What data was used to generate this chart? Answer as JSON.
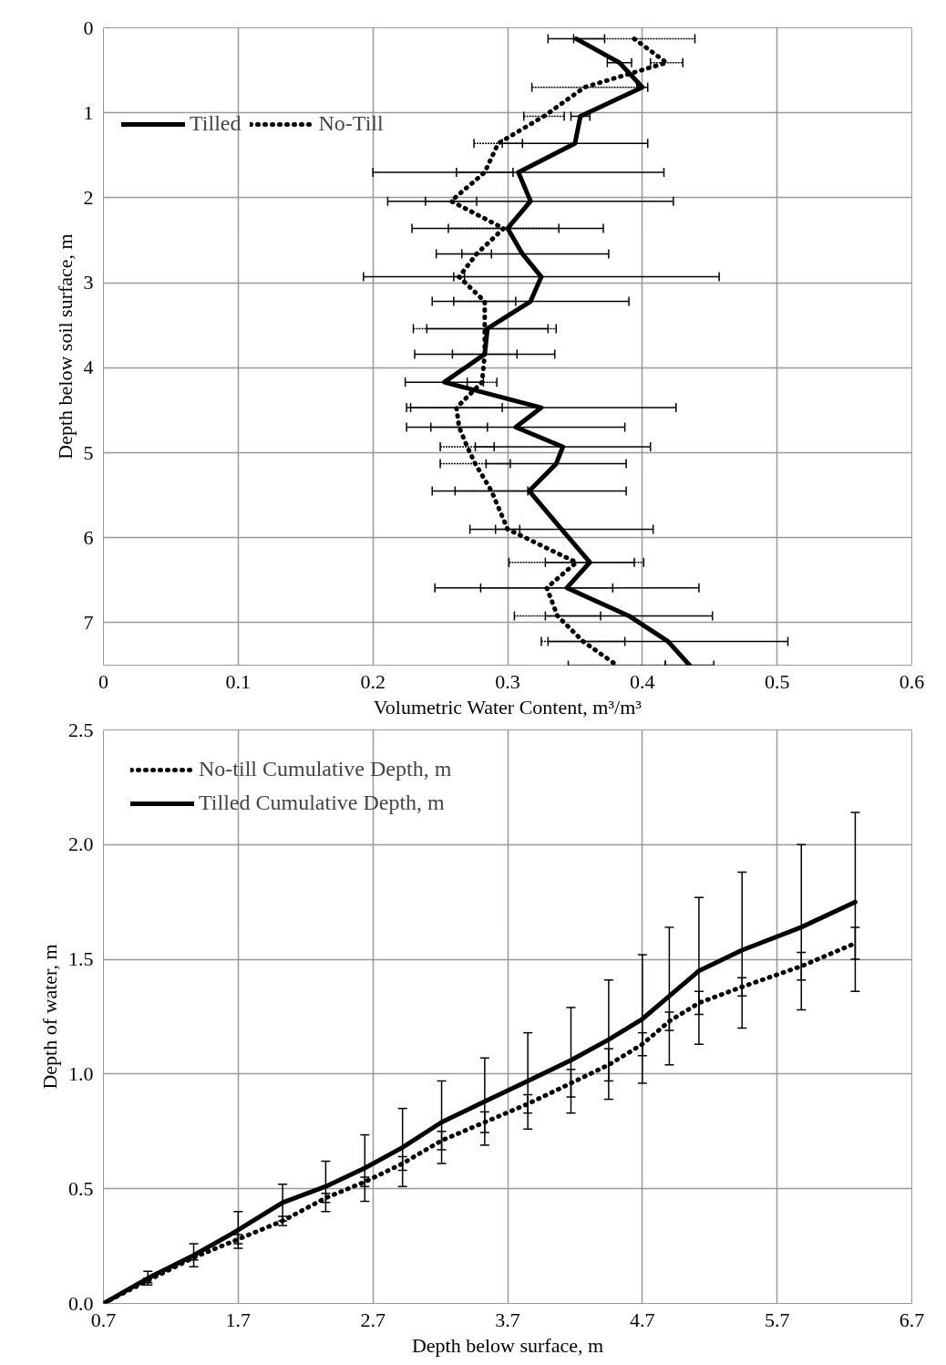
{
  "chart_data": [
    {
      "type": "line",
      "xlabel": "Volumetric Water Content, m³/m³",
      "ylabel": "Depth below soil surface, m",
      "xlim": [
        0,
        0.6
      ],
      "ylim": [
        7.5,
        0
      ],
      "xticks": [
        0,
        0.1,
        0.2,
        0.3,
        0.4,
        0.5,
        0.6
      ],
      "yticks": [
        0,
        1,
        2,
        3,
        4,
        5,
        6,
        7
      ],
      "grid": true,
      "legend": "top left",
      "series": [
        {
          "name": "Tilled",
          "color": "#000000",
          "line_style": "solid",
          "x": [
            0.351,
            0.383,
            0.4,
            0.354,
            0.35,
            0.308,
            0.317,
            0.3,
            0.311,
            0.325,
            0.317,
            0.285,
            0.283,
            0.253,
            0.325,
            0.306,
            0.341,
            0.336,
            0.316,
            0.34,
            0.361,
            0.344,
            0.39,
            0.419,
            0.435
          ],
          "values": [
            0.13,
            0.41,
            0.7,
            1.04,
            1.36,
            1.7,
            2.04,
            2.36,
            2.66,
            2.93,
            3.22,
            3.54,
            3.84,
            4.17,
            4.47,
            4.7,
            4.93,
            5.13,
            5.45,
            5.9,
            6.29,
            6.59,
            6.92,
            7.22,
            7.5
          ],
          "xerrors": [
            0.021,
            0.009,
            0.004,
            0.007,
            0.054,
            0.108,
            0.106,
            0.071,
            0.064,
            0.132,
            0.073,
            0.045,
            0.052,
            0.029,
            0.1,
            0.081,
            0.065,
            0.052,
            0.072,
            0.068,
            0.033,
            0.098,
            0.062,
            0.089,
            0.018
          ]
        },
        {
          "name": "No-Till",
          "color": "#000000",
          "line_style": "dotted",
          "x": [
            0.394,
            0.418,
            0.357,
            0.327,
            0.293,
            0.283,
            0.258,
            0.297,
            0.277,
            0.264,
            0.283,
            0.283,
            0.283,
            0.281,
            0.262,
            0.264,
            0.27,
            0.276,
            0.288,
            0.3,
            0.351,
            0.329,
            0.337,
            0.356,
            0.381
          ],
          "values": [
            0.13,
            0.41,
            0.7,
            1.04,
            1.36,
            1.7,
            2.04,
            2.36,
            2.66,
            2.93,
            3.22,
            3.54,
            3.84,
            4.17,
            4.47,
            4.7,
            4.93,
            5.13,
            5.45,
            5.9,
            6.29,
            6.59,
            6.92,
            7.22,
            7.5
          ],
          "xerrors": [
            0.045,
            0.012,
            0.039,
            0.015,
            0.018,
            0.021,
            0.019,
            0.041,
            0.011,
            0.004,
            0.023,
            0.053,
            0.024,
            0.011,
            0.034,
            0.021,
            0.02,
            0.026,
            0.027,
            0.009,
            0.05,
            0.049,
            0.032,
            0.031,
            0.036
          ]
        }
      ]
    },
    {
      "type": "line",
      "xlabel": "Depth below surface, m",
      "ylabel": "Depth of water, m",
      "xlim": [
        0.7,
        6.7
      ],
      "ylim": [
        0,
        2.5
      ],
      "xticks": [
        0.7,
        1.7,
        2.7,
        3.7,
        4.7,
        5.7,
        6.7
      ],
      "yticks": [
        {
          "value": 0,
          "label": "0.0"
        },
        {
          "value": 0.5,
          "label": "0.5"
        },
        {
          "value": 1,
          "label": "1.0"
        },
        {
          "value": 1.5,
          "label": "1.5"
        },
        {
          "value": 2,
          "label": "2.0"
        },
        {
          "value": 2.5,
          "label": "2.5"
        }
      ],
      "grid": true,
      "legend": "top left",
      "series": [
        {
          "name": "No-till Cumulative Depth, m",
          "color": "#000000",
          "line_style": "dotted",
          "x": [
            0.7,
            1.03,
            1.37,
            1.7,
            2.03,
            2.35,
            2.64,
            2.92,
            3.21,
            3.53,
            3.85,
            4.17,
            4.45,
            4.7,
            4.9,
            5.12,
            5.44,
            5.88,
            6.28
          ],
          "values": [
            0,
            0.1,
            0.2,
            0.28,
            0.36,
            0.46,
            0.53,
            0.61,
            0.71,
            0.79,
            0.87,
            0.96,
            1.04,
            1.13,
            1.23,
            1.31,
            1.38,
            1.47,
            1.57
          ],
          "errors": [
            null,
            0.01,
            0.01,
            0.02,
            0.02,
            0.02,
            0.02,
            0.03,
            0.04,
            0.045,
            0.04,
            0.06,
            0.07,
            0.05,
            0.04,
            0.05,
            0.04,
            0.06,
            0.07
          ]
        },
        {
          "name": "Tilled Cumulative Depth, m",
          "color": "#000000",
          "line_style": "solid",
          "x": [
            0.7,
            1.03,
            1.37,
            1.7,
            2.03,
            2.35,
            2.64,
            2.92,
            3.21,
            3.53,
            3.85,
            4.17,
            4.45,
            4.7,
            4.9,
            5.12,
            5.44,
            5.88,
            6.28
          ],
          "values": [
            0,
            0.11,
            0.21,
            0.32,
            0.44,
            0.51,
            0.59,
            0.68,
            0.79,
            0.88,
            0.97,
            1.06,
            1.15,
            1.24,
            1.34,
            1.45,
            1.54,
            1.64,
            1.75
          ],
          "errors": [
            null,
            0.03,
            0.05,
            0.08,
            0.08,
            0.11,
            0.145,
            0.17,
            0.18,
            0.19,
            0.21,
            0.23,
            0.26,
            0.28,
            0.3,
            0.32,
            0.34,
            0.36,
            0.39
          ]
        }
      ]
    }
  ]
}
